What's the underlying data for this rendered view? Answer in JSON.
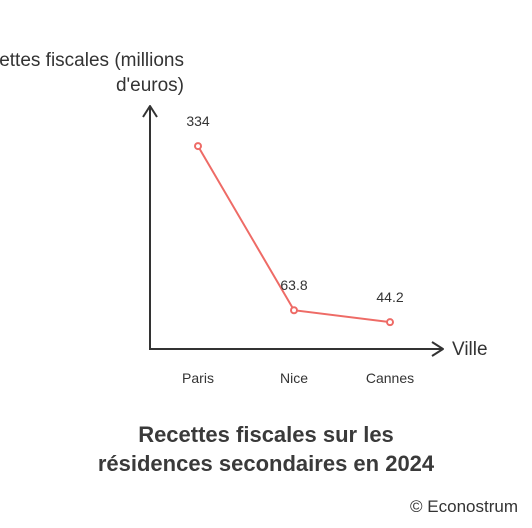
{
  "chart_data": {
    "type": "line",
    "categories": [
      "Paris",
      "Nice",
      "Cannes"
    ],
    "values": [
      334,
      63.8,
      44.2
    ],
    "data_labels": [
      "334",
      "63.8",
      "44.2"
    ],
    "ylabel_line1": "Recettes fiscales (millions",
    "ylabel_line2": "d'euros)",
    "xlabel": "Ville",
    "title_line1": "Recettes fiscales sur les",
    "title_line2": "résidences secondaires en 2024",
    "ylim": [
      0,
      400
    ],
    "line_color": "#ee6b66",
    "axis_color": "#333333",
    "grid": false,
    "legend": "none"
  },
  "credit": "© Econostrum"
}
